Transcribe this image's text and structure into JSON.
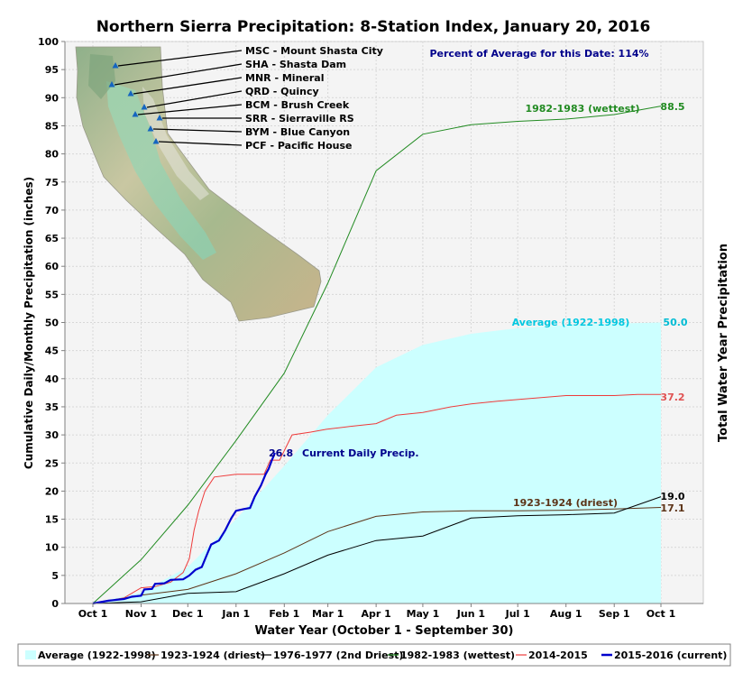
{
  "chart_data": {
    "type": "line",
    "title": "Northern Sierra Precipitation: 8-Station Index, January 20, 2016",
    "xlabel": "Water Year (October 1 - September 30)",
    "ylabel": "Cumulative Daily/Monthly Precipitation (inches)",
    "ylabel_right": "Total Water Year Precipitation",
    "ylim": [
      0,
      100
    ],
    "x_ticks": [
      "Oct 1",
      "Nov 1",
      "Dec 1",
      "Jan 1",
      "Feb 1",
      "Mar 1",
      "Apr 1",
      "May 1",
      "Jun 1",
      "Jul 1",
      "Aug 1",
      "Sep 1",
      "Oct 1"
    ],
    "y_ticks": [
      0,
      5,
      10,
      15,
      20,
      25,
      30,
      35,
      40,
      45,
      50,
      55,
      60,
      65,
      70,
      75,
      80,
      85,
      90,
      95,
      100
    ],
    "x_unit": "days since Oct 1",
    "grid": true,
    "percent_of_average_text": "Percent of Average for this Date: 114%",
    "series": [
      {
        "name": "Average (1922-1998)",
        "style": "area",
        "color": "#ccffff",
        "end_label": "50.0",
        "series_label": "Average (1922-1998)",
        "points": [
          [
            0,
            0
          ],
          [
            31,
            2.0
          ],
          [
            61,
            6.5
          ],
          [
            92,
            15.0
          ],
          [
            123,
            24.5
          ],
          [
            151,
            33.5
          ],
          [
            182,
            42.0
          ],
          [
            212,
            46.0
          ],
          [
            243,
            48.0
          ],
          [
            273,
            49.0
          ],
          [
            304,
            49.5
          ],
          [
            335,
            49.8
          ],
          [
            365,
            50.0
          ]
        ]
      },
      {
        "name": "1923-1924 (driest)",
        "color": "#5c3317",
        "end_label": "17.1",
        "series_label": "1923-1924 (driest)",
        "points": [
          [
            0,
            0
          ],
          [
            31,
            1.5
          ],
          [
            61,
            2.5
          ],
          [
            92,
            5.3
          ],
          [
            123,
            9.0
          ],
          [
            151,
            12.8
          ],
          [
            182,
            15.5
          ],
          [
            212,
            16.3
          ],
          [
            243,
            16.5
          ],
          [
            273,
            16.5
          ],
          [
            304,
            16.6
          ],
          [
            335,
            16.8
          ],
          [
            365,
            17.1
          ]
        ]
      },
      {
        "name": "1976-1977 (2nd Driest)",
        "color": "#000000",
        "end_label": "19.0",
        "series_label": "",
        "points": [
          [
            0,
            0
          ],
          [
            31,
            0.3
          ],
          [
            61,
            1.8
          ],
          [
            92,
            2.1
          ],
          [
            123,
            5.3
          ],
          [
            151,
            8.6
          ],
          [
            182,
            11.2
          ],
          [
            212,
            12.0
          ],
          [
            243,
            15.2
          ],
          [
            273,
            15.6
          ],
          [
            304,
            15.8
          ],
          [
            335,
            16.1
          ],
          [
            365,
            19.0
          ]
        ]
      },
      {
        "name": "1982-1983 (wettest)",
        "color": "#228b22",
        "end_label": "88.5",
        "series_label": "1982-1983 (wettest)",
        "points": [
          [
            0,
            0
          ],
          [
            31,
            7.8
          ],
          [
            61,
            17.5
          ],
          [
            92,
            29.0
          ],
          [
            123,
            41.0
          ],
          [
            151,
            57.0
          ],
          [
            182,
            77.0
          ],
          [
            212,
            83.5
          ],
          [
            243,
            85.2
          ],
          [
            273,
            85.8
          ],
          [
            304,
            86.2
          ],
          [
            335,
            87.0
          ],
          [
            365,
            88.5
          ]
        ]
      },
      {
        "name": "2014-2015",
        "color": "#ee3b3b",
        "end_label": "37.2",
        "series_label": "",
        "points": [
          [
            0,
            0
          ],
          [
            10,
            0.5
          ],
          [
            20,
            1.0
          ],
          [
            31,
            2.8
          ],
          [
            40,
            3.0
          ],
          [
            50,
            3.8
          ],
          [
            58,
            5.5
          ],
          [
            62,
            8.0
          ],
          [
            65,
            13.0
          ],
          [
            68,
            16.5
          ],
          [
            72,
            20.0
          ],
          [
            78,
            22.5
          ],
          [
            92,
            23.0
          ],
          [
            110,
            23.0
          ],
          [
            114,
            25.5
          ],
          [
            120,
            25.5
          ],
          [
            128,
            30.0
          ],
          [
            140,
            30.5
          ],
          [
            150,
            31.0
          ],
          [
            165,
            31.5
          ],
          [
            182,
            32.0
          ],
          [
            195,
            33.5
          ],
          [
            212,
            34.0
          ],
          [
            230,
            35.0
          ],
          [
            243,
            35.5
          ],
          [
            260,
            36.0
          ],
          [
            273,
            36.3
          ],
          [
            304,
            37.0
          ],
          [
            335,
            37.0
          ],
          [
            350,
            37.2
          ],
          [
            365,
            37.2
          ]
        ]
      },
      {
        "name": "2015-2016 (current)",
        "color": "#0000cd",
        "width": 2.2,
        "end_label": "26.8",
        "series_label": "Current Daily Precip.",
        "points": [
          [
            0,
            0
          ],
          [
            10,
            0.5
          ],
          [
            20,
            0.8
          ],
          [
            25,
            1.2
          ],
          [
            31,
            1.4
          ],
          [
            33,
            2.5
          ],
          [
            38,
            2.6
          ],
          [
            40,
            3.5
          ],
          [
            46,
            3.6
          ],
          [
            50,
            4.2
          ],
          [
            58,
            4.3
          ],
          [
            62,
            5.0
          ],
          [
            66,
            6.0
          ],
          [
            70,
            6.5
          ],
          [
            73,
            8.5
          ],
          [
            76,
            10.5
          ],
          [
            81,
            11.2
          ],
          [
            85,
            13.0
          ],
          [
            89,
            15.2
          ],
          [
            92,
            16.5
          ],
          [
            97,
            16.8
          ],
          [
            101,
            17.0
          ],
          [
            104,
            19.0
          ],
          [
            108,
            21.0
          ],
          [
            111,
            23.0
          ],
          [
            113,
            24.0
          ],
          [
            115,
            25.5
          ],
          [
            117,
            26.8
          ]
        ]
      }
    ],
    "stations": [
      {
        "label": "MSC - Mount Shasta City"
      },
      {
        "label": "SHA - Shasta Dam"
      },
      {
        "label": "MNR - Mineral"
      },
      {
        "label": "QRD - Quincy"
      },
      {
        "label": "BCM - Brush Creek"
      },
      {
        "label": "SRR - Sierraville RS"
      },
      {
        "label": "BYM - Blue Canyon"
      },
      {
        "label": "PCF - Pacific House"
      }
    ],
    "legend": {
      "position": "bottom",
      "items": [
        {
          "label": "Average (1922-1998)",
          "color": "#ccffff",
          "kind": "area"
        },
        {
          "label": "1923-1924 (driest)",
          "color": "#5c3317",
          "kind": "line"
        },
        {
          "label": "1976-1977 (2nd Driest)",
          "color": "#000000",
          "kind": "line"
        },
        {
          "label": "1982-1983 (wettest)",
          "color": "#228b22",
          "kind": "line"
        },
        {
          "label": "2014-2015",
          "color": "#ee3b3b",
          "kind": "line"
        },
        {
          "label": "2015-2016 (current)",
          "color": "#0000cd",
          "kind": "line"
        }
      ]
    },
    "map_inset": "California relief map with station markers"
  }
}
